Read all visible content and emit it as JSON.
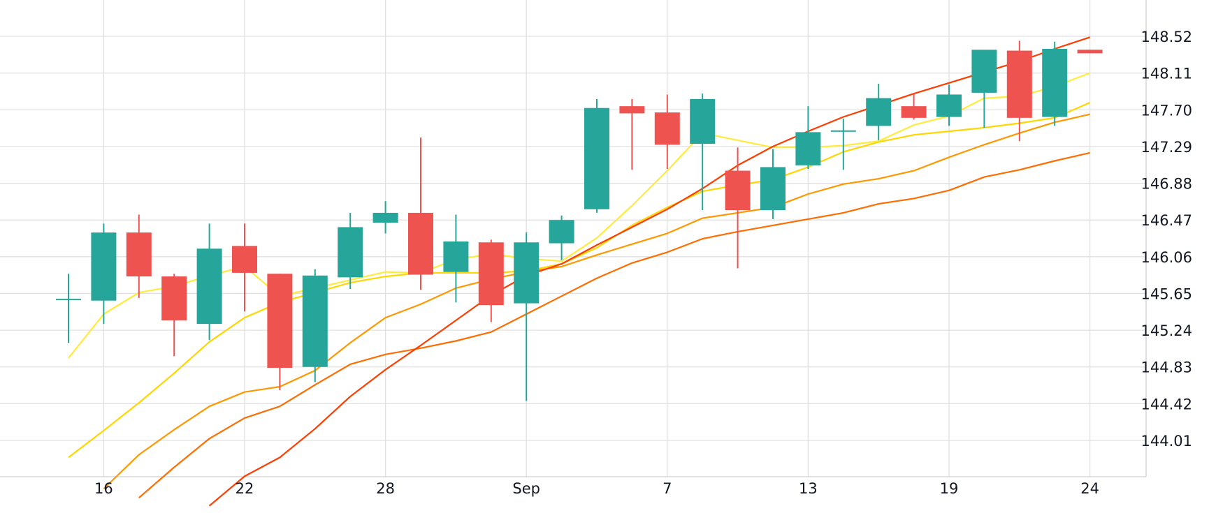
{
  "chart_data": {
    "type": "candlestick",
    "x_ticks": [
      {
        "i": 1,
        "label": "16"
      },
      {
        "i": 5,
        "label": "22"
      },
      {
        "i": 9,
        "label": "28"
      },
      {
        "i": 13,
        "label": "Sep"
      },
      {
        "i": 17,
        "label": "7"
      },
      {
        "i": 21,
        "label": "13"
      },
      {
        "i": 25,
        "label": "19"
      },
      {
        "i": 29,
        "label": "24"
      }
    ],
    "y_ticks": [
      "144.01",
      "144.42",
      "144.83",
      "145.24",
      "145.65",
      "146.06",
      "146.47",
      "146.88",
      "147.29",
      "147.70",
      "148.11",
      "148.52"
    ],
    "ylim": [
      143.6,
      148.83
    ],
    "candles": [
      {
        "o": 145.59,
        "h": 145.87,
        "l": 145.1,
        "c": 145.59
      },
      {
        "o": 145.57,
        "h": 146.43,
        "l": 145.31,
        "c": 146.33
      },
      {
        "o": 146.33,
        "h": 146.53,
        "l": 145.6,
        "c": 145.84
      },
      {
        "o": 145.84,
        "h": 145.87,
        "l": 144.95,
        "c": 145.35
      },
      {
        "o": 145.31,
        "h": 146.43,
        "l": 145.13,
        "c": 146.15
      },
      {
        "o": 146.18,
        "h": 146.43,
        "l": 145.45,
        "c": 145.88
      },
      {
        "o": 145.87,
        "h": 145.87,
        "l": 144.57,
        "c": 144.82
      },
      {
        "o": 144.83,
        "h": 145.92,
        "l": 144.66,
        "c": 145.85
      },
      {
        "o": 145.83,
        "h": 146.55,
        "l": 145.7,
        "c": 146.39
      },
      {
        "o": 146.44,
        "h": 146.68,
        "l": 146.32,
        "c": 146.55
      },
      {
        "o": 146.55,
        "h": 147.39,
        "l": 145.69,
        "c": 145.86
      },
      {
        "o": 145.89,
        "h": 146.53,
        "l": 145.55,
        "c": 146.23
      },
      {
        "o": 146.22,
        "h": 146.25,
        "l": 145.33,
        "c": 145.52
      },
      {
        "o": 145.54,
        "h": 146.33,
        "l": 144.45,
        "c": 146.22
      },
      {
        "o": 146.21,
        "h": 146.52,
        "l": 146.02,
        "c": 146.47
      },
      {
        "o": 146.59,
        "h": 147.82,
        "l": 146.55,
        "c": 147.72
      },
      {
        "o": 147.74,
        "h": 147.82,
        "l": 147.03,
        "c": 147.66
      },
      {
        "o": 147.67,
        "h": 147.87,
        "l": 147.04,
        "c": 147.31
      },
      {
        "o": 147.32,
        "h": 147.88,
        "l": 146.58,
        "c": 147.82
      },
      {
        "o": 147.02,
        "h": 147.28,
        "l": 145.93,
        "c": 146.58
      },
      {
        "o": 146.58,
        "h": 147.26,
        "l": 146.48,
        "c": 147.06
      },
      {
        "o": 147.08,
        "h": 147.74,
        "l": 147.04,
        "c": 147.45
      },
      {
        "o": 147.47,
        "h": 147.6,
        "l": 147.03,
        "c": 147.47
      },
      {
        "o": 147.52,
        "h": 147.99,
        "l": 147.36,
        "c": 147.83
      },
      {
        "o": 147.74,
        "h": 147.89,
        "l": 147.59,
        "c": 147.61
      },
      {
        "o": 147.62,
        "h": 147.98,
        "l": 147.52,
        "c": 147.87
      },
      {
        "o": 147.89,
        "h": 148.34,
        "l": 147.5,
        "c": 148.37
      },
      {
        "o": 148.36,
        "h": 148.47,
        "l": 147.35,
        "c": 147.61
      },
      {
        "o": 147.62,
        "h": 148.46,
        "l": 147.52,
        "c": 148.38
      },
      {
        "o": 148.37,
        "h": 148.37,
        "l": 148.33,
        "c": 148.33
      }
    ],
    "moving_averages": [
      {
        "color": "#ffeb3b",
        "points": [
          [
            0,
            144.93
          ],
          [
            1,
            145.42
          ],
          [
            2,
            145.66
          ],
          [
            3,
            145.73
          ],
          [
            4,
            145.85
          ],
          [
            5,
            145.95
          ],
          [
            6,
            145.62
          ],
          [
            7,
            145.71
          ],
          [
            8,
            145.8
          ],
          [
            9,
            145.89
          ],
          [
            10,
            145.88
          ],
          [
            11,
            146.03
          ],
          [
            12,
            146.09
          ],
          [
            13,
            146.04
          ],
          [
            14,
            146.01
          ],
          [
            15,
            146.27
          ],
          [
            16,
            146.63
          ],
          [
            17,
            147.02
          ],
          [
            18,
            147.44
          ],
          [
            19,
            147.36
          ],
          [
            20,
            147.28
          ],
          [
            21,
            147.28
          ],
          [
            22,
            147.3
          ],
          [
            23,
            147.35
          ],
          [
            24,
            147.53
          ],
          [
            25,
            147.63
          ],
          [
            26,
            147.83
          ],
          [
            27,
            147.85
          ],
          [
            28,
            147.96
          ],
          [
            29,
            148.11
          ]
        ]
      },
      {
        "color": "#ffd600",
        "points": [
          [
            0,
            143.82
          ],
          [
            1,
            144.12
          ],
          [
            2,
            144.43
          ],
          [
            3,
            144.76
          ],
          [
            4,
            145.11
          ],
          [
            5,
            145.38
          ],
          [
            6,
            145.55
          ],
          [
            7,
            145.66
          ],
          [
            8,
            145.77
          ],
          [
            9,
            145.84
          ],
          [
            10,
            145.88
          ],
          [
            11,
            145.88
          ],
          [
            12,
            145.88
          ],
          [
            13,
            145.9
          ],
          [
            14,
            145.98
          ],
          [
            15,
            146.16
          ],
          [
            16,
            146.41
          ],
          [
            17,
            146.61
          ],
          [
            18,
            146.79
          ],
          [
            19,
            146.86
          ],
          [
            20,
            146.92
          ],
          [
            21,
            147.06
          ],
          [
            22,
            147.23
          ],
          [
            23,
            147.34
          ],
          [
            24,
            147.42
          ],
          [
            25,
            147.46
          ],
          [
            26,
            147.5
          ],
          [
            27,
            147.55
          ],
          [
            28,
            147.61
          ],
          [
            29,
            147.78
          ]
        ]
      },
      {
        "color": "#ff9800",
        "points": [
          [
            1,
            143.47
          ],
          [
            2,
            143.85
          ],
          [
            3,
            144.13
          ],
          [
            4,
            144.39
          ],
          [
            5,
            144.55
          ],
          [
            6,
            144.61
          ],
          [
            7,
            144.79
          ],
          [
            8,
            145.1
          ],
          [
            9,
            145.38
          ],
          [
            10,
            145.53
          ],
          [
            11,
            145.71
          ],
          [
            12,
            145.81
          ],
          [
            13,
            145.89
          ],
          [
            14,
            145.95
          ],
          [
            15,
            146.08
          ],
          [
            16,
            146.2
          ],
          [
            17,
            146.32
          ],
          [
            18,
            146.49
          ],
          [
            19,
            146.55
          ],
          [
            20,
            146.61
          ],
          [
            21,
            146.76
          ],
          [
            22,
            146.87
          ],
          [
            23,
            146.93
          ],
          [
            24,
            147.02
          ],
          [
            25,
            147.17
          ],
          [
            26,
            147.31
          ],
          [
            27,
            147.44
          ],
          [
            28,
            147.56
          ],
          [
            29,
            147.65
          ]
        ]
      },
      {
        "color": "#ff6d00",
        "points": [
          [
            2,
            143.37
          ],
          [
            3,
            143.71
          ],
          [
            4,
            144.03
          ],
          [
            5,
            144.26
          ],
          [
            6,
            144.39
          ],
          [
            7,
            144.63
          ],
          [
            8,
            144.86
          ],
          [
            9,
            144.97
          ],
          [
            10,
            145.04
          ],
          [
            11,
            145.12
          ],
          [
            12,
            145.22
          ],
          [
            13,
            145.42
          ],
          [
            14,
            145.62
          ],
          [
            15,
            145.82
          ],
          [
            16,
            145.99
          ],
          [
            17,
            146.11
          ],
          [
            18,
            146.26
          ],
          [
            19,
            146.34
          ],
          [
            20,
            146.41
          ],
          [
            21,
            146.48
          ],
          [
            22,
            146.55
          ],
          [
            23,
            146.65
          ],
          [
            24,
            146.71
          ],
          [
            25,
            146.8
          ],
          [
            26,
            146.95
          ],
          [
            27,
            147.03
          ],
          [
            28,
            147.13
          ],
          [
            29,
            147.22
          ]
        ]
      },
      {
        "color": "#ff3d00",
        "points": [
          [
            4,
            143.28
          ],
          [
            5,
            143.61
          ],
          [
            6,
            143.82
          ],
          [
            7,
            144.14
          ],
          [
            8,
            144.5
          ],
          [
            9,
            144.8
          ],
          [
            10,
            145.07
          ],
          [
            11,
            145.35
          ],
          [
            12,
            145.63
          ],
          [
            13,
            145.85
          ],
          [
            14,
            145.98
          ],
          [
            15,
            146.19
          ],
          [
            16,
            146.39
          ],
          [
            17,
            146.59
          ],
          [
            18,
            146.82
          ],
          [
            19,
            147.08
          ],
          [
            20,
            147.29
          ],
          [
            21,
            147.46
          ],
          [
            22,
            147.62
          ],
          [
            23,
            147.75
          ],
          [
            24,
            147.88
          ],
          [
            25,
            148.0
          ],
          [
            26,
            148.12
          ],
          [
            27,
            148.24
          ],
          [
            28,
            148.38
          ],
          [
            29,
            148.51
          ]
        ]
      }
    ],
    "colors": {
      "up": "#26a69a",
      "down": "#ef5350",
      "grid": "#e0e0e0",
      "text": "#131722"
    }
  }
}
